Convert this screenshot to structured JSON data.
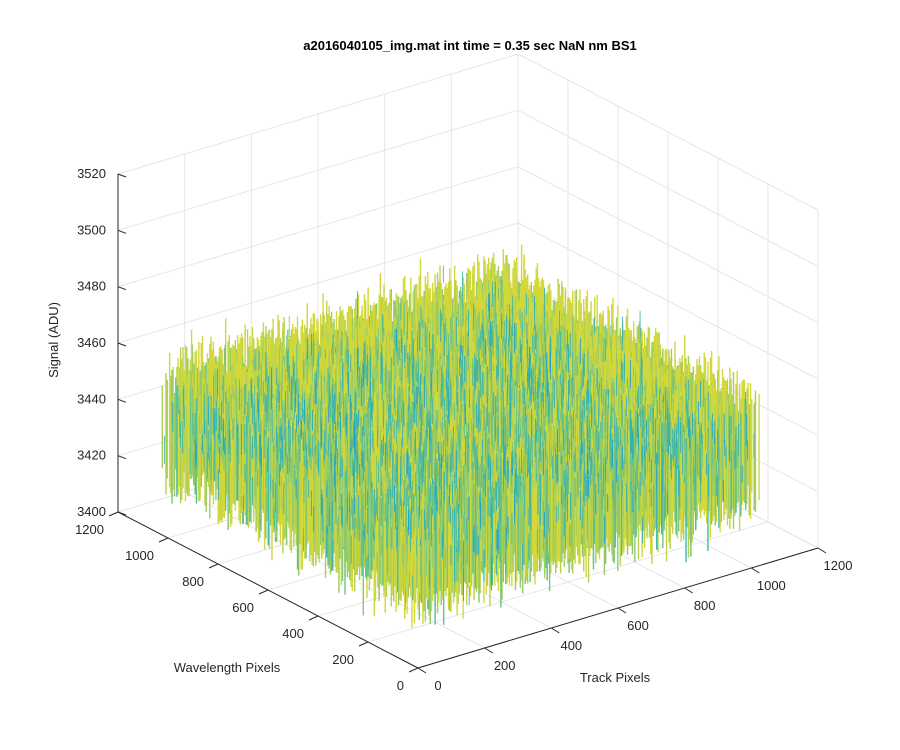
{
  "chart_data": {
    "type": "surface3d",
    "title": "a2016040105_img.mat int time = 0.35 sec  NaN nm BS1",
    "xlabel": "Track Pixels",
    "ylabel": "Wavelength Pixels",
    "zlabel": "Signal (ADU)",
    "xlim": [
      0,
      1200
    ],
    "ylim": [
      0,
      1200
    ],
    "zlim": [
      3400,
      3520
    ],
    "xticks": [
      "0",
      "200",
      "400",
      "600",
      "800",
      "1000",
      "1200"
    ],
    "yticks": [
      "0",
      "200",
      "400",
      "600",
      "800",
      "1000",
      "1200"
    ],
    "zticks": [
      "3400",
      "3420",
      "3440",
      "3460",
      "3480",
      "3500",
      "3520"
    ],
    "data_extent": {
      "x": [
        1,
        1024
      ],
      "y": [
        1,
        1024
      ]
    },
    "signal_mean": 3440,
    "signal_typical_range": [
      3420,
      3460
    ],
    "colormap": "parula",
    "grid": true,
    "colors": {
      "axis": "#262626",
      "grid": "#e6e6e6",
      "surface_low": "#0072bd",
      "surface_high": "#d3d83a"
    }
  }
}
